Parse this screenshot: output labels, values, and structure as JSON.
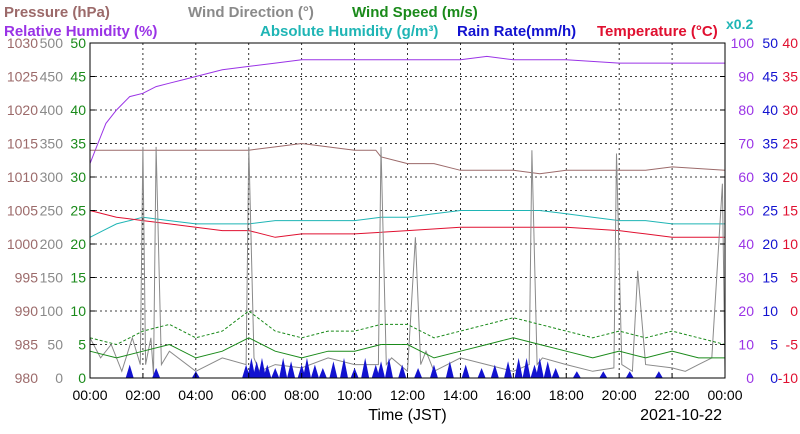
{
  "chart_data": {
    "type": "line",
    "date": "2021-10-22",
    "xlabel": "Time (JST)",
    "multiplier_note": "x0.2",
    "x_ticks": [
      "00:00",
      "02:00",
      "04:00",
      "06:00",
      "08:00",
      "10:00",
      "12:00",
      "14:00",
      "16:00",
      "18:00",
      "20:00",
      "22:00",
      "00:00"
    ],
    "x_range_hours": [
      0,
      24
    ],
    "grid": true,
    "legend": [
      {
        "label": "Pressure (hPa)",
        "color": "#9c6a6a"
      },
      {
        "label": "Wind Direction (°)",
        "color": "#8a8a8a"
      },
      {
        "label": "Wind Speed (m/s)",
        "color": "#1a8a1a"
      },
      {
        "label": "Relative Humidity (%)",
        "color": "#9a33e6"
      },
      {
        "label": "Absolute Humidity (g/m³)",
        "color": "#1fb5b5"
      },
      {
        "label": "Rain Rate(mm/h)",
        "color": "#1212d0"
      },
      {
        "label": "Temperature (°C)",
        "color": "#e01030"
      }
    ],
    "axes": {
      "pressure": {
        "ticks": [
          "1030",
          "1025",
          "1020",
          "1015",
          "1010",
          "1005",
          "1000",
          "995",
          "990",
          "985",
          "980"
        ],
        "range": [
          980,
          1030
        ],
        "color": "#9c6a6a"
      },
      "wind_direction": {
        "ticks": [
          "500",
          "450",
          "400",
          "350",
          "300",
          "250",
          "200",
          "150",
          "100",
          "50",
          "0"
        ],
        "range": [
          0,
          500
        ],
        "color": "#8a8a8a"
      },
      "wind_speed": {
        "ticks": [
          "50",
          "45",
          "40",
          "35",
          "30",
          "25",
          "20",
          "15",
          "10",
          "5",
          "0"
        ],
        "range": [
          0,
          50
        ],
        "color": "#1a8a1a"
      },
      "relative_humidity": {
        "ticks": [
          "100",
          "90",
          "80",
          "70",
          "60",
          "50",
          "40",
          "30",
          "20",
          "10",
          "0"
        ],
        "range": [
          0,
          100
        ],
        "color": "#9a33e6"
      },
      "rain_rate": {
        "ticks": [
          "50",
          "45",
          "40",
          "35",
          "30",
          "25",
          "20",
          "15",
          "10",
          "5",
          "0"
        ],
        "range": [
          0,
          50
        ],
        "color": "#1212d0"
      },
      "temperature": {
        "ticks": [
          "40",
          "35",
          "30",
          "25",
          "20",
          "15",
          "10",
          "5",
          "0",
          "-5",
          "-10"
        ],
        "range": [
          -10,
          40
        ],
        "color": "#e01030"
      }
    },
    "series": [
      {
        "name": "Relative Humidity (%)",
        "axis": "relative_humidity",
        "color": "#9a33e6",
        "x": [
          0,
          0.3,
          0.6,
          1,
          1.5,
          2,
          2.5,
          3,
          3.5,
          4,
          4.5,
          5,
          6,
          7,
          8,
          9,
          10,
          12,
          14,
          15,
          16,
          18,
          20,
          22,
          24
        ],
        "y": [
          64,
          70,
          76,
          80,
          84,
          85,
          87,
          88,
          89,
          90,
          91,
          92,
          93,
          94,
          95,
          95,
          95,
          95,
          95,
          96,
          95,
          95,
          94,
          94,
          94
        ]
      },
      {
        "name": "Pressure (hPa)",
        "axis": "pressure",
        "color": "#9c6a6a",
        "x": [
          0,
          2,
          4,
          6,
          7,
          8,
          9,
          10,
          10.8,
          11,
          12,
          13,
          14,
          16,
          17,
          18,
          20,
          21,
          22,
          24
        ],
        "y": [
          1014,
          1014,
          1014,
          1014,
          1014.5,
          1015,
          1014.5,
          1014,
          1014,
          1013,
          1012,
          1012,
          1011,
          1011,
          1010.5,
          1011,
          1011,
          1011,
          1011.5,
          1011
        ]
      },
      {
        "name": "Absolute Humidity (g/m³)",
        "axis": "relative_humidity",
        "color": "#1fb5b5",
        "x": [
          0,
          0.5,
          1,
          1.5,
          2,
          3,
          4,
          5,
          6,
          7,
          8,
          9,
          10,
          11,
          12,
          13,
          14,
          15,
          16,
          17,
          18,
          19,
          20,
          21,
          22,
          23,
          24
        ],
        "y": [
          42,
          44,
          46,
          47,
          48,
          47,
          46,
          46,
          46,
          47,
          47,
          47,
          47,
          48,
          48,
          49,
          50,
          50,
          50,
          50,
          49,
          48,
          47,
          47,
          46,
          46,
          46
        ]
      },
      {
        "name": "Temperature (°C)",
        "axis": "temperature",
        "color": "#e01030",
        "x": [
          0,
          1,
          2,
          3,
          4,
          5,
          6,
          7,
          8,
          10,
          12,
          14,
          16,
          18,
          20,
          21,
          22,
          24
        ],
        "y": [
          15,
          14,
          13.5,
          13,
          12.5,
          12,
          12,
          11,
          11.5,
          11.5,
          12,
          12.5,
          12.5,
          12.5,
          12,
          11.5,
          11,
          11
        ]
      },
      {
        "name": "Wind Direction (°)",
        "axis": "wind_direction",
        "color": "#8a8a8a",
        "x": [
          0,
          0.4,
          0.8,
          1.2,
          1.6,
          1.9,
          2.0,
          2.1,
          2.3,
          2.4,
          2.5,
          2.7,
          3,
          4,
          5,
          5.9,
          6.0,
          6.2,
          6.4,
          7,
          8,
          9,
          10,
          10.9,
          11.0,
          11.2,
          11.4,
          12,
          12.3,
          12.5,
          12.7,
          13,
          14,
          15,
          16,
          16.6,
          16.7,
          16.9,
          17.1,
          18,
          19,
          19.8,
          19.9,
          20.1,
          20.5,
          20.7,
          21,
          22,
          22.5,
          23,
          23.5,
          23.9,
          24
        ],
        "y": [
          60,
          30,
          50,
          10,
          60,
          20,
          345,
          20,
          60,
          5,
          345,
          20,
          40,
          10,
          30,
          20,
          345,
          30,
          10,
          20,
          15,
          30,
          20,
          20,
          345,
          20,
          30,
          10,
          210,
          20,
          40,
          10,
          30,
          20,
          10,
          20,
          340,
          20,
          30,
          20,
          10,
          15,
          335,
          20,
          10,
          160,
          20,
          15,
          10,
          20,
          30,
          290,
          10
        ]
      },
      {
        "name": "Wind Speed (m/s)",
        "axis": "wind_speed",
        "color": "#1a8a1a",
        "x": [
          0,
          1,
          2,
          3,
          4,
          5,
          6,
          7,
          8,
          9,
          10,
          11,
          12,
          13,
          14,
          15,
          16,
          17,
          18,
          19,
          20,
          21,
          22,
          23,
          24
        ],
        "y": [
          4,
          3,
          4,
          5,
          3,
          4,
          6,
          4,
          3,
          4,
          4,
          5,
          5,
          3,
          4,
          5,
          6,
          5,
          4,
          3,
          4,
          3,
          4,
          3,
          3
        ]
      },
      {
        "name": "Wind Speed max (m/s)",
        "axis": "wind_speed",
        "color": "#1a8a1a",
        "x": [
          0,
          1,
          2,
          3,
          4,
          5,
          6,
          7,
          8,
          9,
          10,
          11,
          12,
          13,
          14,
          15,
          16,
          17,
          18,
          19,
          20,
          21,
          22,
          23,
          24
        ],
        "y": [
          6,
          5,
          7,
          8,
          6,
          7,
          10,
          7,
          6,
          7,
          7,
          8,
          8,
          6,
          7,
          8,
          9,
          8,
          7,
          6,
          7,
          6,
          7,
          6,
          5
        ]
      },
      {
        "name": "Rain Rate(mm/h)",
        "axis": "rain_rate",
        "color": "#1212d0",
        "x": [
          1.5,
          2.5,
          4.0,
          5.9,
          6.1,
          6.3,
          6.5,
          6.7,
          7.0,
          7.3,
          7.6,
          8.0,
          8.2,
          8.5,
          8.8,
          9.2,
          9.6,
          10.0,
          10.4,
          10.8,
          11.0,
          11.3,
          11.8,
          12.4,
          13.0,
          13.6,
          14.2,
          14.8,
          15.3,
          15.8,
          16.2,
          16.5,
          16.8,
          17.0,
          17.3,
          17.6,
          18.4,
          19.4,
          20.4,
          21.5
        ],
        "y": [
          2,
          1.5,
          1,
          2,
          3,
          2.5,
          3,
          2,
          1.5,
          3,
          2.5,
          2,
          3,
          2,
          1.5,
          2.5,
          3,
          1.5,
          3,
          2,
          2.5,
          3,
          2,
          1.5,
          2,
          2.5,
          2,
          1.5,
          2,
          2.5,
          3,
          3,
          2,
          3,
          2.5,
          1.5,
          1,
          1,
          1,
          1
        ]
      }
    ]
  }
}
